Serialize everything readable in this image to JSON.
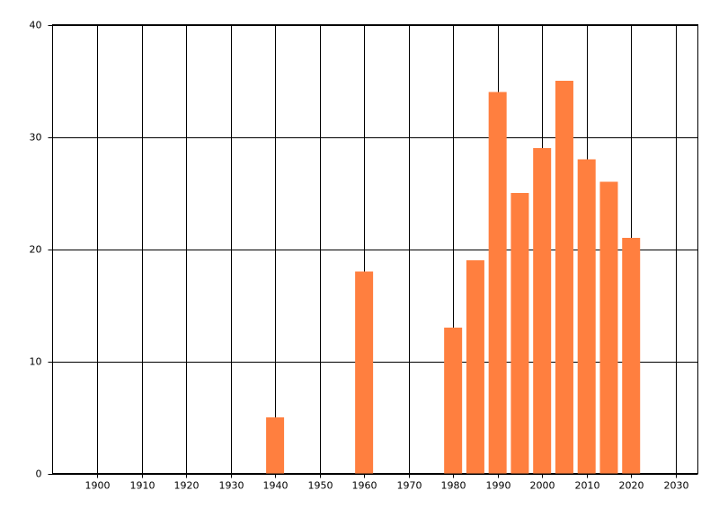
{
  "chart_data": {
    "type": "bar",
    "x": [
      1940,
      1960,
      1980,
      1985,
      1990,
      1995,
      2000,
      2005,
      2010,
      2015,
      2020
    ],
    "values": [
      5,
      18,
      13,
      19,
      34,
      25,
      29,
      35,
      28,
      26,
      21
    ],
    "color": "#ff7f3f",
    "xlim": [
      1890,
      2035
    ],
    "xticks": [
      1900,
      1910,
      1920,
      1930,
      1940,
      1950,
      1960,
      1970,
      1980,
      1990,
      2000,
      2010,
      2020,
      2030
    ],
    "ylim": [
      0,
      40
    ],
    "yticks": [
      0,
      10,
      20,
      30,
      40
    ],
    "grid": true
  }
}
